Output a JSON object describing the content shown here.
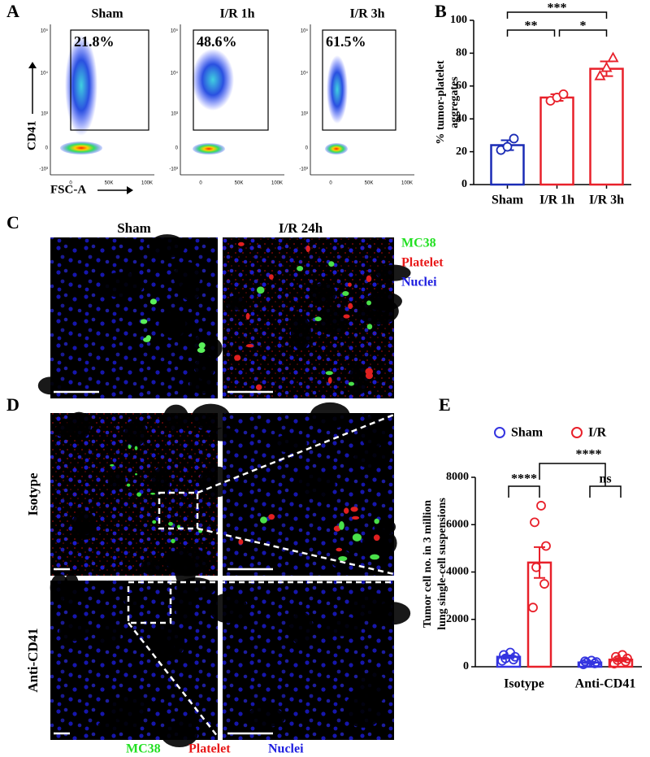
{
  "panel_labels": {
    "a": "A",
    "b": "B",
    "c": "C",
    "d": "D",
    "e": "E"
  },
  "flow_cytometry": {
    "y_label": "CD41",
    "x_label": "FSC-A",
    "y_tick_labels": [
      "10⁵",
      "10⁴",
      "10³",
      "0",
      "-10³"
    ],
    "x_tick_labels": [
      "0",
      "50K",
      "100K"
    ],
    "plots": [
      {
        "title": "Sham",
        "gate": "21.8%"
      },
      {
        "title": "I/R 1h",
        "gate": "48.6%"
      },
      {
        "title": "I/R 3h",
        "gate": "61.5%"
      }
    ]
  },
  "chart_data": [
    {
      "type": "bar",
      "ylabel": [
        "% tumor-platelet",
        "aggregates"
      ],
      "categories": [
        "Sham",
        "I/R 1h",
        "I/R 3h"
      ],
      "values": [
        24,
        53,
        70.5
      ],
      "errors": [
        3,
        2,
        4.5
      ],
      "points": [
        [
          21,
          23,
          28
        ],
        [
          51,
          53,
          55
        ],
        [
          66,
          71,
          77
        ]
      ],
      "colors": [
        "#1a2bb5",
        "#e8202a",
        "#e8202a"
      ],
      "markers": [
        "circle",
        "circle",
        "triangle"
      ],
      "ylim": [
        0,
        100
      ],
      "yticks": [
        0,
        20,
        40,
        60,
        80,
        100
      ],
      "significance": [
        {
          "from": 0,
          "to": 1,
          "label": "**"
        },
        {
          "from": 1,
          "to": 2,
          "label": "*"
        },
        {
          "from": 0,
          "to": 2,
          "label": "***"
        }
      ]
    },
    {
      "type": "grouped_bar",
      "ylabel": [
        "Tumor cell no. in 3 million",
        "lung single-cell suspensions"
      ],
      "categories": [
        "Isotype",
        "Anti-CD41"
      ],
      "series": [
        {
          "name": "Sham",
          "color": "#3434e0",
          "values": [
            420,
            180
          ],
          "errors": [
            60,
            25
          ],
          "points": [
            [
              250,
              300,
              350,
              420,
              500,
              600
            ],
            [
              100,
              140,
              170,
              200,
              230,
              260
            ]
          ]
        },
        {
          "name": "I/R",
          "color": "#e8202a",
          "values": [
            4400,
            300
          ],
          "errors": [
            650,
            70
          ],
          "points": [
            [
              2500,
              3500,
              4200,
              5100,
              6100,
              6800
            ],
            [
              130,
              220,
              280,
              350,
              420,
              500
            ]
          ]
        }
      ],
      "ylim": [
        0,
        8000
      ],
      "yticks": [
        0,
        2000,
        4000,
        6000,
        8000
      ],
      "legend": "top",
      "significance": [
        {
          "from": [
            0,
            0
          ],
          "to": [
            0,
            1
          ],
          "label": "****"
        },
        {
          "from": [
            1,
            0
          ],
          "to": [
            1,
            1
          ],
          "label": "ns"
        },
        {
          "from": [
            0,
            1
          ],
          "to": [
            1
          ],
          "label": "****"
        }
      ]
    }
  ],
  "imaging_c": {
    "columns": [
      "Sham",
      "I/R 24h"
    ],
    "legend": [
      {
        "text": "MC38",
        "color": "#22e022"
      },
      {
        "text": "Platelet",
        "color": "#e81818"
      },
      {
        "text": "Nuclei",
        "color": "#2020e0"
      }
    ]
  },
  "imaging_d": {
    "rows": [
      "Isotype",
      "Anti-CD41"
    ],
    "legend": [
      {
        "text": "MC38",
        "color": "#22e022"
      },
      {
        "text": "Platelet",
        "color": "#e81818"
      },
      {
        "text": "Nuclei",
        "color": "#2020e0"
      }
    ]
  }
}
